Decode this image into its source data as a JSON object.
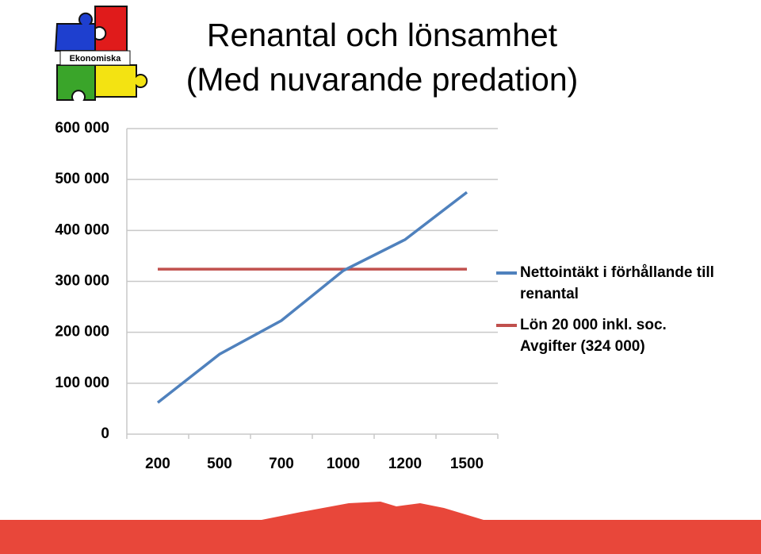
{
  "logo": {
    "text": "Ekonomiska"
  },
  "chart_data": {
    "type": "line",
    "title": "Renantal och lönsamhet",
    "subtitle": "(Med nuvarande predation)",
    "categories": [
      "200",
      "500",
      "700",
      "1000",
      "1200",
      "1500"
    ],
    "series": [
      {
        "name": "Nettointäkt i förhållande till renantal",
        "color": "#4f81bd",
        "values": [
          62000,
          157000,
          223000,
          321000,
          382000,
          475000
        ]
      },
      {
        "name": "Lön 20 000 inkl. soc. Avgifter (324 000)",
        "color": "#c0504d",
        "values": [
          324000,
          324000,
          324000,
          324000,
          324000,
          324000
        ]
      }
    ],
    "ylim": [
      0,
      600000
    ],
    "yticks": [
      0,
      {
        "value": 100000,
        "label": "100 000"
      },
      {
        "value": 200000,
        "label": "200 000"
      },
      {
        "value": 300000,
        "label": "300 000"
      },
      {
        "value": 400000,
        "label": "400 000"
      },
      {
        "value": 500000,
        "label": "500 000"
      },
      {
        "value": 600000,
        "label": "600 000"
      }
    ],
    "grid": true,
    "legend": "right"
  }
}
